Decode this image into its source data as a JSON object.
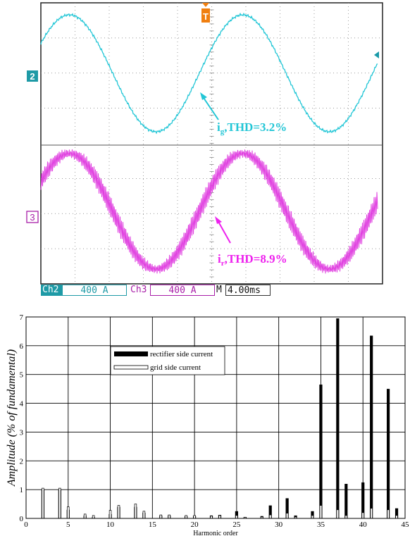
{
  "scope": {
    "trigger_marker": "T",
    "channels": [
      {
        "marker": "2",
        "label": "Ch2",
        "scale": "400 A",
        "color": "#22c6d6"
      },
      {
        "marker": "3",
        "label": "Ch3",
        "scale": "400 A",
        "color": "#e040e0"
      }
    ],
    "timebase_prefix": "M",
    "timebase": "4.00ms",
    "annotations": [
      {
        "sym": "i",
        "sub": "g",
        "text": ",THD=3.2%",
        "color": "#22c6d6"
      },
      {
        "sym": "i",
        "sub": "r",
        "text": ",THD=8.9%",
        "color": "#ee22ee"
      }
    ]
  },
  "chart_data": {
    "type": "bar",
    "xlabel": "Harmonic order",
    "ylabel": "Amplitude (% of fundamental)",
    "xlim": [
      0,
      45
    ],
    "ylim": [
      0,
      7
    ],
    "xticks": [
      0,
      5,
      10,
      15,
      20,
      25,
      30,
      35,
      40,
      45
    ],
    "yticks": [
      0,
      1,
      2,
      3,
      4,
      5,
      6,
      7
    ],
    "grid": true,
    "legend_position": "upper-center",
    "series": [
      {
        "name": "rectifier side current",
        "points": [
          [
            2,
            1.0
          ],
          [
            4,
            1.0
          ],
          [
            5,
            0.3
          ],
          [
            7,
            0.1
          ],
          [
            8,
            0.05
          ],
          [
            10,
            0.15
          ],
          [
            11,
            0.4
          ],
          [
            13,
            0.4
          ],
          [
            14,
            0.2
          ],
          [
            16,
            0.1
          ],
          [
            17,
            0.1
          ],
          [
            19,
            0.08
          ],
          [
            20,
            0.08
          ],
          [
            22,
            0.1
          ],
          [
            23,
            0.12
          ],
          [
            25,
            0.25
          ],
          [
            26,
            0.05
          ],
          [
            28,
            0.08
          ],
          [
            29,
            0.45
          ],
          [
            31,
            0.7
          ],
          [
            32,
            0.1
          ],
          [
            34,
            0.25
          ],
          [
            35,
            4.65
          ],
          [
            37,
            6.95
          ],
          [
            38,
            1.2
          ],
          [
            40,
            1.25
          ],
          [
            41,
            6.35
          ],
          [
            43,
            4.5
          ],
          [
            44,
            0.35
          ]
        ]
      },
      {
        "name": "grid side current",
        "points": [
          [
            2,
            1.05
          ],
          [
            4,
            1.05
          ],
          [
            5,
            0.4
          ],
          [
            7,
            0.15
          ],
          [
            8,
            0.1
          ],
          [
            10,
            0.28
          ],
          [
            11,
            0.45
          ],
          [
            13,
            0.5
          ],
          [
            14,
            0.25
          ],
          [
            16,
            0.12
          ],
          [
            17,
            0.12
          ],
          [
            19,
            0.1
          ],
          [
            20,
            0.1
          ],
          [
            22,
            0.08
          ],
          [
            23,
            0.1
          ],
          [
            25,
            0.1
          ],
          [
            26,
            0.04
          ],
          [
            28,
            0.05
          ],
          [
            29,
            0.12
          ],
          [
            31,
            0.18
          ],
          [
            32,
            0.05
          ],
          [
            34,
            0.1
          ],
          [
            35,
            0.45
          ],
          [
            37,
            0.3
          ],
          [
            38,
            0.1
          ],
          [
            40,
            0.2
          ],
          [
            41,
            0.35
          ],
          [
            43,
            0.3
          ],
          [
            44,
            0.1
          ]
        ]
      }
    ]
  }
}
